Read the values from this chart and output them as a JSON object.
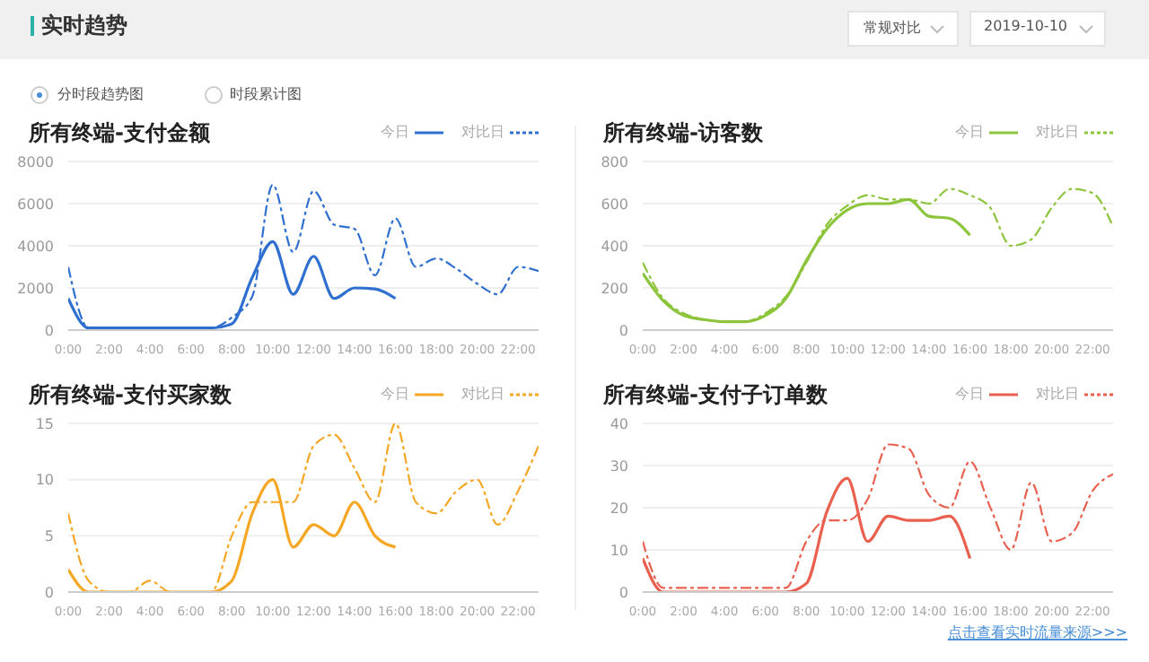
{
  "chart_data": [
    {
      "type": "other",
      "title": "实时趋势",
      "annotations": [
        "常规对比",
        "2019-10-10",
        "分时段趋势图",
        "时段累计图"
      ]
    },
    {
      "type": "line",
      "title": "所有终端-支付金额",
      "legend": "top right",
      "grid": "y",
      "x": [
        0,
        1,
        2,
        3,
        4,
        5,
        6,
        7,
        8,
        9,
        10,
        11,
        12,
        13,
        14,
        15,
        16,
        17,
        18,
        19,
        20,
        21,
        22,
        23
      ],
      "xlim": [
        0,
        23
      ],
      "xticks": [
        {
          "value": 0,
          "label": "0:00"
        },
        {
          "value": 2,
          "label": "2:00"
        },
        {
          "value": 4,
          "label": "4:00"
        },
        {
          "value": 6,
          "label": "6:00"
        },
        {
          "value": 8,
          "label": "8:00"
        },
        {
          "value": 10,
          "label": "10:00"
        },
        {
          "value": 12,
          "label": "12:00"
        },
        {
          "value": 14,
          "label": "14:00"
        },
        {
          "value": 16,
          "label": "16:00"
        },
        {
          "value": 18,
          "label": "18:00"
        },
        {
          "value": 20,
          "label": "20:00"
        },
        {
          "value": 22,
          "label": "22:00"
        }
      ],
      "ylim": [
        0,
        8000
      ],
      "yticks": [
        0,
        2000,
        4000,
        6000,
        8000
      ],
      "series": [
        {
          "name": "今日",
          "color": "#2f6fd0",
          "line_style": "solid",
          "x": [
            0,
            1,
            2,
            3,
            4,
            5,
            6,
            7,
            8,
            9,
            10,
            11,
            12,
            13,
            14,
            15,
            16
          ],
          "values": [
            1500,
            100,
            100,
            100,
            100,
            100,
            100,
            100,
            300,
            2500,
            4200,
            1700,
            3500,
            1500,
            2000,
            1950,
            1500
          ]
        },
        {
          "name": "对比日",
          "color": "#2f6fd0",
          "line_style": "dashed",
          "values": [
            3000,
            100,
            100,
            100,
            100,
            100,
            100,
            100,
            600,
            1600,
            6900,
            3700,
            6600,
            5000,
            4800,
            2600,
            5300,
            3000,
            3400,
            2900,
            2200,
            1700,
            3000,
            2800
          ]
        }
      ]
    },
    {
      "type": "line",
      "title": "所有终端-访客数",
      "legend": "top right",
      "grid": "y",
      "x": [
        0,
        1,
        2,
        3,
        4,
        5,
        6,
        7,
        8,
        9,
        10,
        11,
        12,
        13,
        14,
        15,
        16,
        17,
        18,
        19,
        20,
        21,
        22,
        23
      ],
      "xlim": [
        0,
        23
      ],
      "xticks": [
        {
          "value": 0,
          "label": "0:00"
        },
        {
          "value": 2,
          "label": "2:00"
        },
        {
          "value": 4,
          "label": "4:00"
        },
        {
          "value": 6,
          "label": "6:00"
        },
        {
          "value": 8,
          "label": "8:00"
        },
        {
          "value": 10,
          "label": "10:00"
        },
        {
          "value": 12,
          "label": "12:00"
        },
        {
          "value": 14,
          "label": "14:00"
        },
        {
          "value": 16,
          "label": "16:00"
        },
        {
          "value": 18,
          "label": "18:00"
        },
        {
          "value": 20,
          "label": "20:00"
        },
        {
          "value": 22,
          "label": "22:00"
        }
      ],
      "ylim": [
        0,
        800
      ],
      "yticks": [
        0,
        200,
        400,
        600,
        800
      ],
      "series": [
        {
          "name": "今日",
          "color": "#8cc43c",
          "line_style": "solid",
          "x": [
            0,
            1,
            2,
            3,
            4,
            5,
            6,
            7,
            8,
            9,
            10,
            11,
            12,
            13,
            14,
            15,
            16
          ],
          "values": [
            270,
            140,
            70,
            50,
            40,
            40,
            70,
            150,
            330,
            480,
            570,
            600,
            600,
            620,
            540,
            530,
            450
          ]
        },
        {
          "name": "对比日",
          "color": "#8cc43c",
          "line_style": "dashed",
          "values": [
            320,
            150,
            80,
            50,
            40,
            40,
            80,
            160,
            320,
            500,
            590,
            640,
            620,
            620,
            600,
            670,
            640,
            580,
            400,
            430,
            580,
            670,
            650,
            490
          ]
        }
      ]
    },
    {
      "type": "line",
      "title": "所有终端-支付买家数",
      "legend": "top right",
      "grid": "y",
      "x": [
        0,
        1,
        2,
        3,
        4,
        5,
        6,
        7,
        8,
        9,
        10,
        11,
        12,
        13,
        14,
        15,
        16,
        17,
        18,
        19,
        20,
        21,
        22,
        23
      ],
      "xlim": [
        0,
        23
      ],
      "xticks": [
        {
          "value": 0,
          "label": "0:00"
        },
        {
          "value": 2,
          "label": "2:00"
        },
        {
          "value": 4,
          "label": "4:00"
        },
        {
          "value": 6,
          "label": "6:00"
        },
        {
          "value": 8,
          "label": "8:00"
        },
        {
          "value": 10,
          "label": "10:00"
        },
        {
          "value": 12,
          "label": "12:00"
        },
        {
          "value": 14,
          "label": "14:00"
        },
        {
          "value": 16,
          "label": "16:00"
        },
        {
          "value": 18,
          "label": "18:00"
        },
        {
          "value": 20,
          "label": "20:00"
        },
        {
          "value": 22,
          "label": "22:00"
        }
      ],
      "ylim": [
        0,
        15
      ],
      "yticks": [
        0,
        5,
        10,
        15
      ],
      "series": [
        {
          "name": "今日",
          "color": "#f5a623",
          "line_style": "solid",
          "x": [
            0,
            1,
            2,
            3,
            4,
            5,
            6,
            7,
            8,
            9,
            10,
            11,
            12,
            13,
            14,
            15,
            16
          ],
          "values": [
            2,
            0,
            0,
            0,
            0,
            0,
            0,
            0,
            1,
            7,
            10,
            4,
            6,
            5,
            8,
            5,
            4
          ]
        },
        {
          "name": "对比日",
          "color": "#f5a623",
          "line_style": "dashed",
          "values": [
            7,
            1,
            0,
            0,
            1,
            0,
            0,
            0,
            5,
            8,
            8,
            8,
            13,
            14,
            11,
            8,
            15,
            8,
            7,
            9,
            10,
            6,
            9,
            13
          ]
        }
      ]
    },
    {
      "type": "line",
      "title": "所有终端-支付子订单数",
      "legend": "top right",
      "grid": "y",
      "annotations": [
        "点击查看实时流量来源>>>"
      ],
      "x": [
        0,
        1,
        2,
        3,
        4,
        5,
        6,
        7,
        8,
        9,
        10,
        11,
        12,
        13,
        14,
        15,
        16,
        17,
        18,
        19,
        20,
        21,
        22,
        23
      ],
      "xlim": [
        0,
        23
      ],
      "xticks": [
        {
          "value": 0,
          "label": "0:00"
        },
        {
          "value": 2,
          "label": "2:00"
        },
        {
          "value": 4,
          "label": "4:00"
        },
        {
          "value": 6,
          "label": "6:00"
        },
        {
          "value": 8,
          "label": "8:00"
        },
        {
          "value": 10,
          "label": "10:00"
        },
        {
          "value": 12,
          "label": "12:00"
        },
        {
          "value": 14,
          "label": "14:00"
        },
        {
          "value": 16,
          "label": "16:00"
        },
        {
          "value": 18,
          "label": "18:00"
        },
        {
          "value": 20,
          "label": "20:00"
        },
        {
          "value": 22,
          "label": "22:00"
        }
      ],
      "ylim": [
        0,
        40
      ],
      "yticks": [
        0,
        10,
        20,
        30,
        40
      ],
      "series": [
        {
          "name": "今日",
          "color": "#e9604f",
          "line_style": "solid",
          "x": [
            0,
            1,
            2,
            3,
            4,
            5,
            6,
            7,
            8,
            9,
            10,
            11,
            12,
            13,
            14,
            15,
            16
          ],
          "values": [
            8,
            0,
            0,
            0,
            0,
            0,
            0,
            0,
            2,
            19,
            27,
            12,
            18,
            17,
            17,
            18,
            8
          ]
        },
        {
          "name": "对比日",
          "color": "#e9604f",
          "line_style": "dashed",
          "values": [
            12,
            1,
            1,
            1,
            1,
            1,
            1,
            1,
            12,
            17,
            17,
            22,
            35,
            34,
            23,
            20,
            31,
            20,
            10,
            26,
            12,
            14,
            24,
            28
          ]
        }
      ]
    }
  ]
}
